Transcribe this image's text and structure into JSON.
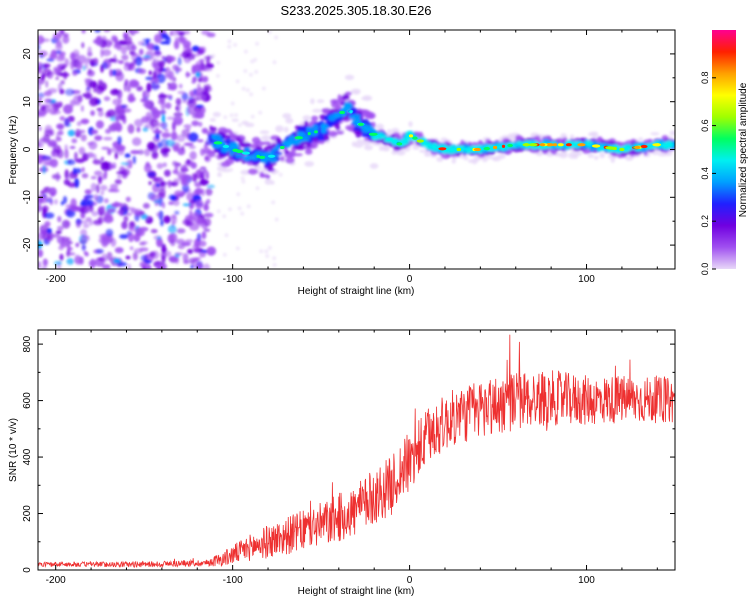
{
  "title": "S233.2025.305.18.30.E26",
  "colors": {
    "snr_line": "#ee3030",
    "axis": "#000000",
    "background": "#ffffff"
  },
  "chart_data": [
    {
      "type": "heatmap",
      "title": "S233.2025.305.18.30.E26",
      "xlabel": "Height of straight line (km)",
      "ylabel": "Frequency (Hz)",
      "xlim": [
        -210,
        150
      ],
      "ylim": [
        -25,
        25
      ],
      "xticks": [
        -200,
        -100,
        0,
        100
      ],
      "xtick_labels": [
        "-200",
        "-100",
        "0",
        "100"
      ],
      "yticks": [
        -20,
        -10,
        0,
        10,
        20
      ],
      "ytick_labels": [
        "-20",
        "-10",
        "0",
        "10",
        "20"
      ],
      "colorbar": {
        "label": "Normalized spectral amplitude",
        "range": [
          0,
          1
        ],
        "ticks": [
          0,
          0.2,
          0.4,
          0.6,
          0.8
        ],
        "tick_labels": [
          "0.0",
          "0.2",
          "0.4",
          "0.6",
          "0.8"
        ],
        "colors": [
          "#e8d8f8",
          "#a050f0",
          "#7000e0",
          "#2020ff",
          "#00a0ff",
          "#00f0f0",
          "#00ff60",
          "#a0ff00",
          "#ffff00",
          "#ffa000",
          "#ff2000",
          "#ff0090"
        ]
      },
      "description_regions": {
        "noise_band_x": [
          -210,
          -112
        ],
        "ridge_x": [
          -112,
          150
        ],
        "ridge_center_freq": [
          [
            -112,
            2
          ],
          [
            -100,
            0
          ],
          [
            -90,
            -1
          ],
          [
            -80,
            -2
          ],
          [
            -70,
            1
          ],
          [
            -60,
            3
          ],
          [
            -50,
            4
          ],
          [
            -40,
            7
          ],
          [
            -35,
            9
          ],
          [
            -30,
            6
          ],
          [
            -20,
            3
          ],
          [
            -10,
            2
          ],
          [
            -5,
            1
          ],
          [
            0,
            3
          ],
          [
            10,
            1
          ],
          [
            20,
            0
          ],
          [
            40,
            0
          ],
          [
            60,
            1
          ],
          [
            80,
            1
          ],
          [
            100,
            1
          ],
          [
            120,
            0
          ],
          [
            140,
            1
          ],
          [
            150,
            1
          ]
        ]
      }
    },
    {
      "type": "line",
      "xlabel": "Height of straight line (km)",
      "ylabel": "SNR (10 * v/v)",
      "xlim": [
        -210,
        150
      ],
      "ylim": [
        0,
        850
      ],
      "xticks": [
        -200,
        -100,
        0,
        100
      ],
      "xtick_labels": [
        "-200",
        "-100",
        "0",
        "100"
      ],
      "yticks": [
        0,
        200,
        400,
        600,
        800
      ],
      "ytick_labels": [
        "0",
        "200",
        "400",
        "600",
        "800"
      ],
      "trend": [
        [
          -210,
          20
        ],
        [
          -150,
          20
        ],
        [
          -115,
          25
        ],
        [
          -105,
          40
        ],
        [
          -90,
          80
        ],
        [
          -75,
          110
        ],
        [
          -60,
          140
        ],
        [
          -45,
          170
        ],
        [
          -30,
          210
        ],
        [
          -20,
          260
        ],
        [
          -10,
          300
        ],
        [
          -5,
          350
        ],
        [
          0,
          380
        ],
        [
          5,
          420
        ],
        [
          10,
          470
        ],
        [
          15,
          500
        ],
        [
          25,
          540
        ],
        [
          40,
          570
        ],
        [
          60,
          600
        ],
        [
          80,
          610
        ],
        [
          100,
          600
        ],
        [
          120,
          605
        ],
        [
          150,
          600
        ]
      ],
      "spread": [
        [
          -210,
          8
        ],
        [
          -115,
          12
        ],
        [
          -100,
          35
        ],
        [
          -80,
          60
        ],
        [
          -50,
          80
        ],
        [
          -20,
          100
        ],
        [
          0,
          110
        ],
        [
          20,
          100
        ],
        [
          50,
          110
        ],
        [
          100,
          90
        ],
        [
          150,
          80
        ]
      ]
    }
  ]
}
